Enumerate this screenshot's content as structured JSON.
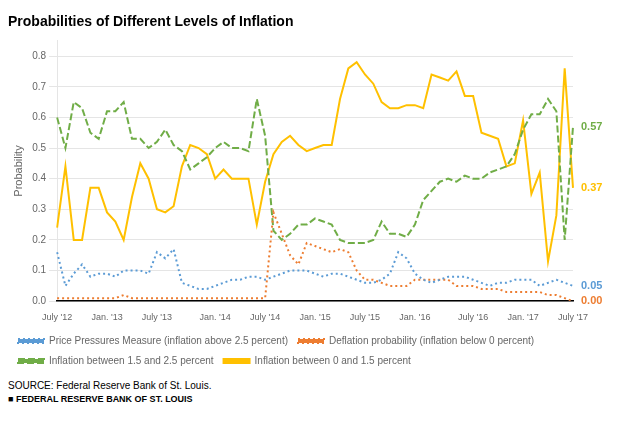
{
  "chart_data": {
    "type": "line",
    "title": "Probabilities of Different Levels of Inflation",
    "ylabel": "Probability",
    "source": "SOURCE: Federal Reserve Bank of St. Louis.",
    "footer": "■ FEDERAL RESERVE BANK OF ST. LOUIS",
    "categories": [
      "July '12",
      null,
      null,
      null,
      null,
      null,
      "Jan. '13",
      null,
      null,
      null,
      null,
      null,
      "July '13",
      null,
      null,
      null,
      null,
      null,
      null,
      "Jan. '14",
      null,
      null,
      null,
      null,
      null,
      "July '14",
      null,
      null,
      null,
      null,
      null,
      "Jan. '15",
      null,
      null,
      null,
      null,
      null,
      "July '15",
      null,
      null,
      null,
      null,
      null,
      "Jan. '16",
      null,
      null,
      null,
      null,
      null,
      null,
      "July '16",
      null,
      null,
      null,
      null,
      null,
      "Jan. '17",
      null,
      null,
      null,
      null,
      null,
      "July '17"
    ],
    "series": [
      {
        "name": "Price Pressures Measure (inflation above 2.5 percent)",
        "color": "#5b9bd5",
        "line_style": "dotted",
        "values": [
          0.16,
          0.05,
          0.09,
          0.12,
          0.08,
          0.09,
          0.09,
          0.08,
          0.1,
          0.1,
          0.1,
          0.09,
          0.16,
          0.14,
          0.17,
          0.06,
          0.05,
          0.04,
          0.04,
          0.05,
          0.06,
          0.07,
          0.07,
          0.08,
          0.08,
          0.07,
          0.08,
          0.09,
          0.1,
          0.1,
          0.1,
          0.09,
          0.08,
          0.09,
          0.09,
          0.08,
          0.07,
          0.06,
          0.06,
          0.07,
          0.09,
          0.16,
          0.14,
          0.09,
          0.07,
          0.06,
          0.07,
          0.08,
          0.08,
          0.08,
          0.07,
          0.06,
          0.05,
          0.06,
          0.06,
          0.07,
          0.07,
          0.07,
          0.05,
          0.06,
          0.07,
          0.06,
          0.05
        ]
      },
      {
        "name": "Deflation probability (inflation below 0 percent)",
        "color": "#ed7d31",
        "line_style": "dotted",
        "values": [
          0.01,
          0.01,
          0.01,
          0.01,
          0.01,
          0.01,
          0.01,
          0.01,
          0.02,
          0.01,
          0.01,
          0.01,
          0.01,
          0.01,
          0.01,
          0.01,
          0.01,
          0.01,
          0.01,
          0.01,
          0.01,
          0.01,
          0.01,
          0.01,
          0.01,
          0.01,
          0.29,
          0.22,
          0.15,
          0.12,
          0.19,
          0.18,
          0.17,
          0.16,
          0.17,
          0.16,
          0.1,
          0.07,
          0.07,
          0.06,
          0.05,
          0.05,
          0.05,
          0.07,
          0.07,
          0.07,
          0.07,
          0.07,
          0.05,
          0.05,
          0.05,
          0.04,
          0.04,
          0.04,
          0.03,
          0.03,
          0.03,
          0.03,
          0.03,
          0.02,
          0.02,
          0.01,
          0.0
        ]
      },
      {
        "name": "Inflation between 1.5 and 2.5 percent",
        "color": "#70ad47",
        "line_style": "dashed",
        "values": [
          0.6,
          0.5,
          0.65,
          0.63,
          0.55,
          0.53,
          0.62,
          0.62,
          0.65,
          0.53,
          0.53,
          0.5,
          0.52,
          0.56,
          0.51,
          0.49,
          0.43,
          0.45,
          0.47,
          0.5,
          0.52,
          0.5,
          0.5,
          0.49,
          0.66,
          0.54,
          0.23,
          0.2,
          0.22,
          0.25,
          0.25,
          0.27,
          0.26,
          0.25,
          0.2,
          0.19,
          0.19,
          0.19,
          0.2,
          0.26,
          0.22,
          0.22,
          0.21,
          0.25,
          0.33,
          0.36,
          0.39,
          0.4,
          0.39,
          0.41,
          0.4,
          0.4,
          0.42,
          0.43,
          0.44,
          0.48,
          0.56,
          0.61,
          0.61,
          0.66,
          0.62,
          0.2,
          0.57
        ]
      },
      {
        "name": "Inflation between 0 and 1.5 percent",
        "color": "#ffc000",
        "line_style": "solid",
        "values": [
          0.24,
          0.44,
          0.2,
          0.2,
          0.37,
          0.37,
          0.29,
          0.26,
          0.2,
          0.34,
          0.45,
          0.4,
          0.3,
          0.29,
          0.31,
          0.44,
          0.51,
          0.5,
          0.48,
          0.4,
          0.43,
          0.4,
          0.4,
          0.4,
          0.25,
          0.39,
          0.48,
          0.52,
          0.54,
          0.51,
          0.49,
          0.5,
          0.51,
          0.51,
          0.66,
          0.76,
          0.78,
          0.74,
          0.71,
          0.65,
          0.63,
          0.63,
          0.64,
          0.64,
          0.63,
          0.74,
          0.73,
          0.72,
          0.75,
          0.67,
          0.67,
          0.55,
          0.54,
          0.53,
          0.44,
          0.45,
          0.59,
          0.35,
          0.42,
          0.13,
          0.28,
          0.76,
          0.37
        ]
      }
    ],
    "annotations": [
      {
        "text": "0.57",
        "y": 0.57,
        "color": "#70ad47"
      },
      {
        "text": "0.37",
        "y": 0.37,
        "color": "#ffc000"
      },
      {
        "text": "0.05",
        "y": 0.05,
        "color": "#5b9bd5"
      },
      {
        "text": "0.00",
        "y": 0.0,
        "color": "#ed7d31"
      }
    ],
    "ylim": [
      0.0,
      0.85
    ],
    "yticks": [
      {
        "value": 0.0,
        "label": "0.0"
      },
      {
        "value": 0.1,
        "label": "0.1"
      },
      {
        "value": 0.2,
        "label": "0.2"
      },
      {
        "value": 0.3,
        "label": "0.3"
      },
      {
        "value": 0.4,
        "label": "0.4"
      },
      {
        "value": 0.5,
        "label": "0.5"
      },
      {
        "value": 0.6,
        "label": "0.6"
      },
      {
        "value": 0.7,
        "label": "0.7"
      },
      {
        "value": 0.8,
        "label": "0.8"
      }
    ],
    "grid": true,
    "legend": "bottom"
  }
}
